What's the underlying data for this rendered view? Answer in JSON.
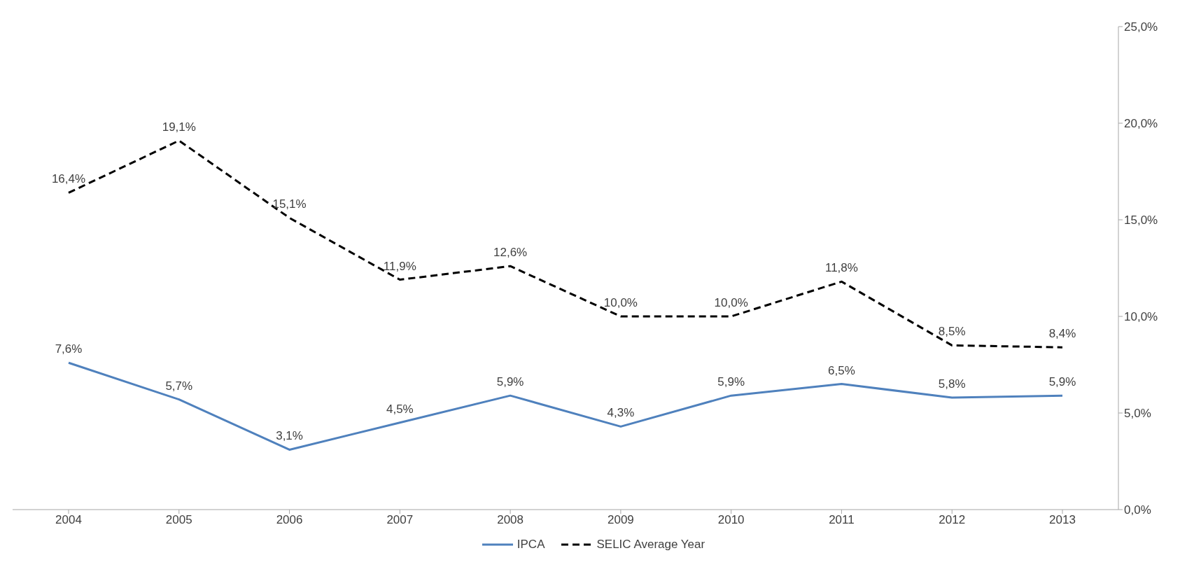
{
  "chart_data": {
    "type": "line",
    "categories": [
      "2004",
      "2005",
      "2006",
      "2007",
      "2008",
      "2009",
      "2010",
      "2011",
      "2012",
      "2013"
    ],
    "series": [
      {
        "name": "IPCA",
        "color": "#4f81bd",
        "line_style": "solid",
        "values": [
          7.6,
          5.7,
          3.1,
          4.5,
          5.9,
          4.3,
          5.9,
          6.5,
          5.8,
          5.9
        ],
        "value_labels": [
          "7,6%",
          "5,7%",
          "3,1%",
          "4,5%",
          "5,9%",
          "4,3%",
          "5,9%",
          "6,5%",
          "5,8%",
          "5,9%"
        ]
      },
      {
        "name": "SELIC Average Year",
        "color": "#000000",
        "line_style": "dashed",
        "values": [
          16.4,
          19.1,
          15.1,
          11.9,
          12.6,
          10.0,
          10.0,
          11.8,
          8.5,
          8.4
        ],
        "value_labels": [
          "16,4%",
          "19,1%",
          "15,1%",
          "11,9%",
          "12,6%",
          "10,0%",
          "10,0%",
          "11,8%",
          "8,5%",
          "8,4%"
        ]
      }
    ],
    "ylim": [
      0,
      25
    ],
    "yticks": [
      {
        "value": 0,
        "label": "0,0%"
      },
      {
        "value": 5,
        "label": "5,0%"
      },
      {
        "value": 10,
        "label": "10,0%"
      },
      {
        "value": 15,
        "label": "15,0%"
      },
      {
        "value": 20,
        "label": "20,0%"
      },
      {
        "value": 25,
        "label": "25,0%"
      }
    ],
    "grid": false,
    "legend": "bottom",
    "marker": "none"
  }
}
